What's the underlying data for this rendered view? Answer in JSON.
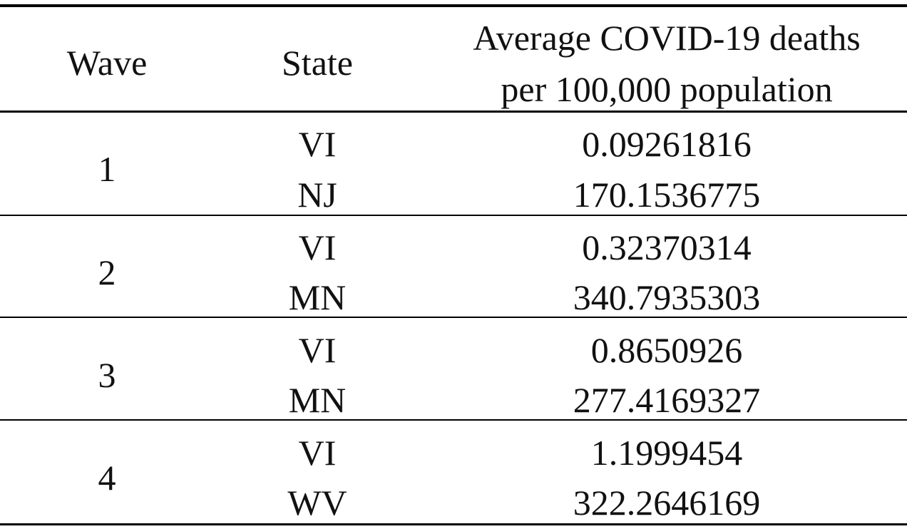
{
  "table": {
    "headers": {
      "wave": "Wave",
      "state": "State",
      "avg_line1": "Average COVID-19 deaths",
      "avg_line2": "per 100,000 population"
    },
    "groups": [
      {
        "wave": "1",
        "rows": [
          {
            "state": "VI",
            "value": "0.09261816"
          },
          {
            "state": "NJ",
            "value": "170.1536775"
          }
        ]
      },
      {
        "wave": "2",
        "rows": [
          {
            "state": "VI",
            "value": "0.32370314"
          },
          {
            "state": "MN",
            "value": "340.7935303"
          }
        ]
      },
      {
        "wave": "3",
        "rows": [
          {
            "state": "VI",
            "value": "0.8650926"
          },
          {
            "state": "MN",
            "value": "277.4169327"
          }
        ]
      },
      {
        "wave": "4",
        "rows": [
          {
            "state": "VI",
            "value": "1.1999454"
          },
          {
            "state": "WV",
            "value": "322.2646169"
          }
        ]
      }
    ]
  }
}
